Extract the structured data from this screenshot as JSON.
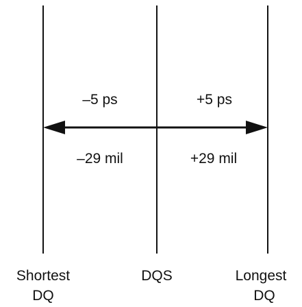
{
  "colors": {
    "line": "#111111",
    "background": "#ffffff"
  },
  "diagram": {
    "lines": [
      {
        "label_line1": "Shortest",
        "label_line2": "DQ"
      },
      {
        "label_line1": "DQS",
        "label_line2": ""
      },
      {
        "label_line1": "Longest",
        "label_line2": "DQ"
      }
    ],
    "arrow": {
      "left_top": "–5 ps",
      "right_top": "+5 ps",
      "left_bottom": "–29 mil",
      "right_bottom": "+29 mil"
    }
  }
}
